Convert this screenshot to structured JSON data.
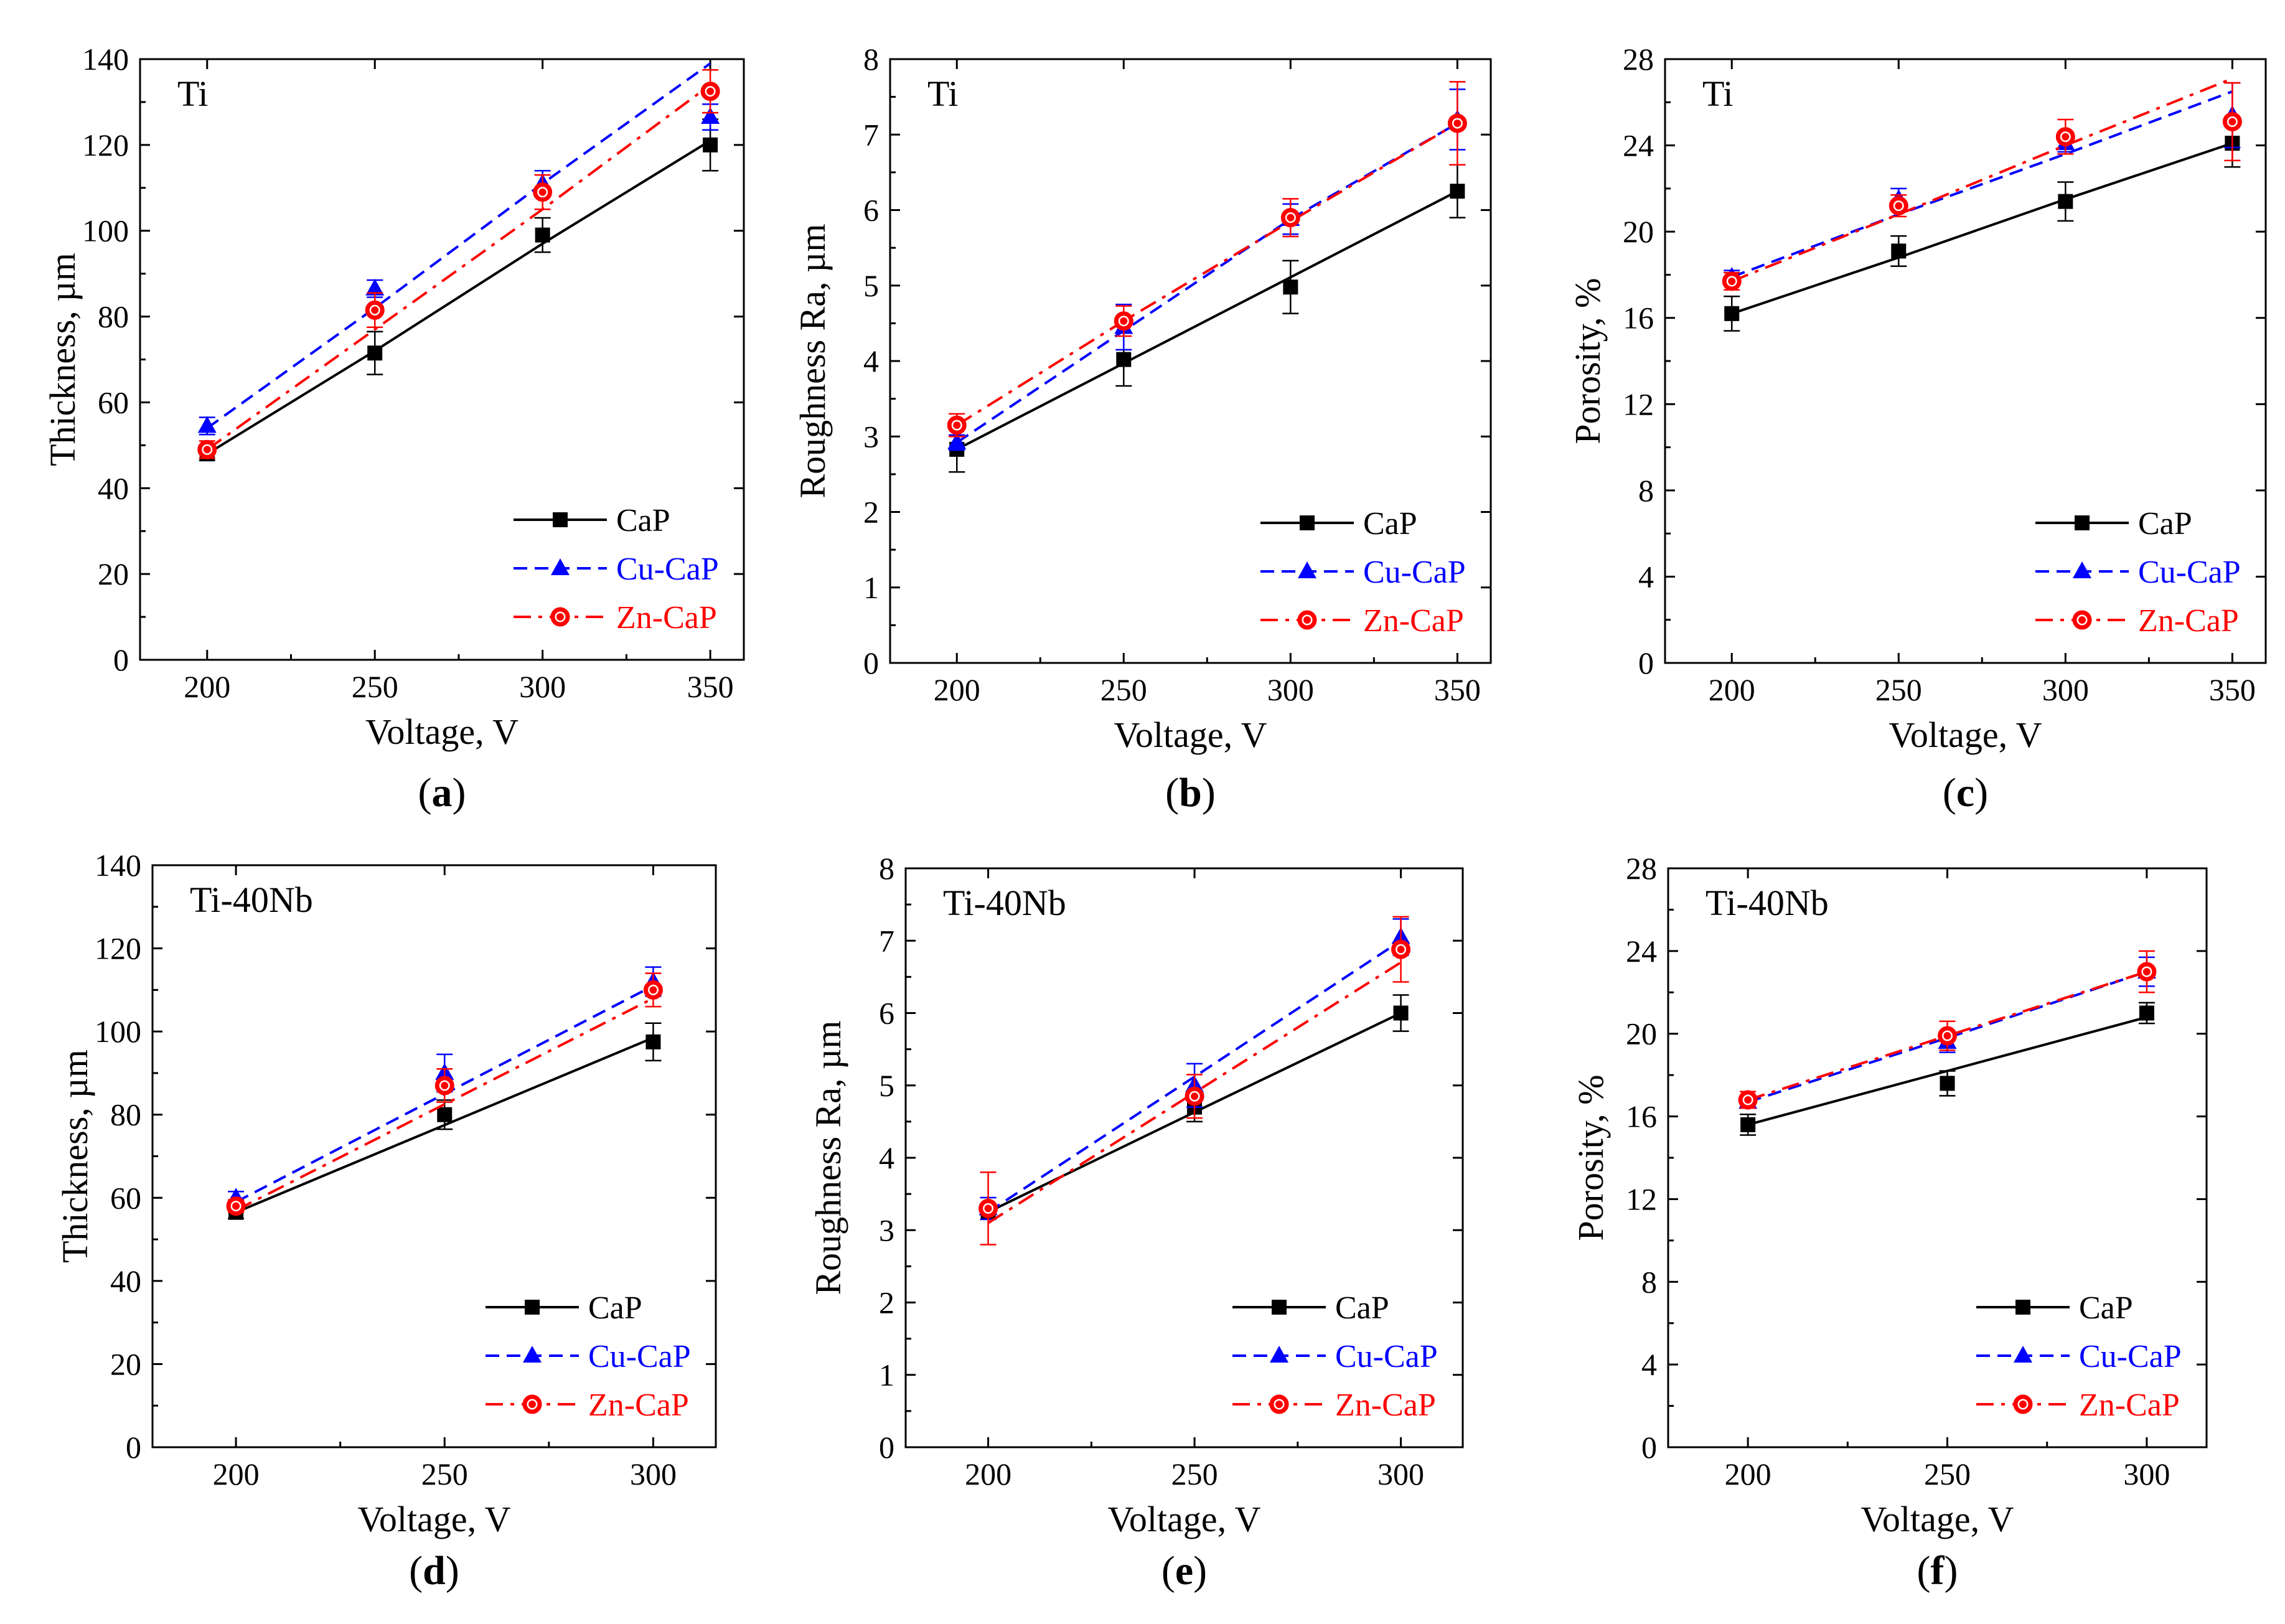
{
  "colors": {
    "CaP": "#000000",
    "Cu-CaP": "#0000ff",
    "Zn-CaP": "#ff0000"
  },
  "chart_data": [
    {
      "id": "a",
      "type": "line",
      "tag": "a",
      "title": "Ti",
      "xlabel": "Voltage, V",
      "ylabel": "Thickness, µm",
      "x": [
        200,
        250,
        300,
        350
      ],
      "xlim": [
        180,
        360
      ],
      "xticks": [
        200,
        250,
        300,
        350
      ],
      "ylim": [
        0,
        140
      ],
      "yticks": [
        0,
        20,
        40,
        60,
        80,
        100,
        120,
        140
      ],
      "legend_position": "bottom-right",
      "series": [
        {
          "name": "CaP",
          "marker": "square",
          "dash": "solid",
          "color": "#000000",
          "values": [
            48,
            71.5,
            99,
            120
          ],
          "errors": [
            1.5,
            5,
            4,
            6
          ],
          "fit": [
            48,
            72,
            97,
            121
          ]
        },
        {
          "name": "Cu-CaP",
          "marker": "triangle",
          "dash": "dashed",
          "color": "#0000ff",
          "values": [
            54.5,
            86.5,
            111,
            126.5
          ],
          "errors": [
            2,
            2,
            3,
            3
          ],
          "fit": [
            54,
            82,
            111,
            139
          ]
        },
        {
          "name": "Zn-CaP",
          "marker": "circle",
          "dash": "dashdot",
          "color": "#ff0000",
          "values": [
            49,
            81.5,
            109,
            132.5
          ],
          "errors": [
            2,
            4,
            4,
            5
          ],
          "fit": [
            49,
            77,
            105,
            134
          ]
        }
      ]
    },
    {
      "id": "b",
      "type": "line",
      "tag": "b",
      "title": "Ti",
      "xlabel": "Voltage, V",
      "ylabel": "Roughness Ra, µm",
      "x": [
        200,
        250,
        300,
        350
      ],
      "xlim": [
        180,
        360
      ],
      "xticks": [
        200,
        250,
        300,
        350
      ],
      "ylim": [
        0,
        8
      ],
      "yticks": [
        0,
        1,
        2,
        3,
        4,
        5,
        6,
        7,
        8
      ],
      "legend_position": "bottom-right",
      "series": [
        {
          "name": "CaP",
          "marker": "square",
          "dash": "solid",
          "color": "#000000",
          "values": [
            2.83,
            4.02,
            4.98,
            6.25
          ],
          "errors": [
            0.3,
            0.35,
            0.35,
            0.35
          ],
          "fit": [
            2.83,
            3.97,
            5.11,
            6.25
          ]
        },
        {
          "name": "Cu-CaP",
          "marker": "triangle",
          "dash": "dashed",
          "color": "#0000ff",
          "values": [
            2.92,
            4.45,
            5.88,
            7.2
          ],
          "errors": [
            0.1,
            0.3,
            0.2,
            0.4
          ],
          "fit": [
            2.92,
            4.4,
            5.88,
            7.15
          ]
        },
        {
          "name": "Zn-CaP",
          "marker": "circle",
          "dash": "dashdot",
          "color": "#ff0000",
          "values": [
            3.15,
            4.53,
            5.9,
            7.15
          ],
          "errors": [
            0.15,
            0.2,
            0.25,
            0.55
          ],
          "fit": [
            3.15,
            4.53,
            5.85,
            7.15
          ]
        }
      ]
    },
    {
      "id": "c",
      "type": "line",
      "tag": "c",
      "title": "Ti",
      "xlabel": "Voltage, V",
      "ylabel": "Porosity, %",
      "x": [
        200,
        250,
        300,
        350
      ],
      "xlim": [
        180,
        360
      ],
      "xticks": [
        200,
        250,
        300,
        350
      ],
      "ylim": [
        0,
        28
      ],
      "yticks": [
        0,
        4,
        8,
        12,
        16,
        20,
        24,
        28
      ],
      "legend_position": "bottom-right",
      "series": [
        {
          "name": "CaP",
          "marker": "square",
          "dash": "solid",
          "color": "#000000",
          "values": [
            16.2,
            19.1,
            21.4,
            24.1
          ],
          "errors": [
            0.8,
            0.7,
            0.9,
            1.1
          ],
          "fit": [
            16.2,
            18.8,
            21.5,
            24.1
          ]
        },
        {
          "name": "Cu-CaP",
          "marker": "triangle",
          "dash": "dashed",
          "color": "#0000ff",
          "values": [
            17.9,
            21.5,
            24.1,
            25.4
          ],
          "errors": [
            0.3,
            0.5,
            0.4,
            1.5
          ],
          "fit": [
            17.9,
            20.8,
            23.6,
            26.5
          ]
        },
        {
          "name": "Zn-CaP",
          "marker": "circle",
          "dash": "dashdot",
          "color": "#ff0000",
          "values": [
            17.7,
            21.2,
            24.4,
            25.1
          ],
          "errors": [
            0.4,
            0.5,
            0.8,
            1.8
          ],
          "fit": [
            17.7,
            20.8,
            24.0,
            27.1
          ]
        }
      ]
    },
    {
      "id": "d",
      "type": "line",
      "tag": "d",
      "title": "Ti-40Nb",
      "xlabel": "Voltage, V",
      "ylabel": "Thickness, µm",
      "x": [
        200,
        250,
        300
      ],
      "xlim": [
        180,
        315
      ],
      "xticks": [
        200,
        250,
        300
      ],
      "ylim": [
        0,
        140
      ],
      "yticks": [
        0,
        20,
        40,
        60,
        80,
        100,
        120,
        140
      ],
      "legend_position": "bottom-right",
      "series": [
        {
          "name": "CaP",
          "marker": "square",
          "dash": "solid",
          "color": "#000000",
          "values": [
            56.5,
            80,
            97.5
          ],
          "errors": [
            1.5,
            3.5,
            4.5
          ],
          "fit": [
            56.5,
            77.5,
            98.5
          ]
        },
        {
          "name": "Cu-CaP",
          "marker": "triangle",
          "dash": "dashed",
          "color": "#0000ff",
          "values": [
            60,
            90,
            112
          ],
          "errors": [
            1.5,
            4.5,
            3.5
          ],
          "fit": [
            59,
            85,
            111
          ]
        },
        {
          "name": "Zn-CaP",
          "marker": "circle",
          "dash": "dashdot",
          "color": "#ff0000",
          "values": [
            58,
            87,
            110
          ],
          "errors": [
            1.5,
            4,
            4
          ],
          "fit": [
            57,
            82.5,
            108
          ]
        }
      ]
    },
    {
      "id": "e",
      "type": "line",
      "tag": "e",
      "title": "Ti-40Nb",
      "xlabel": "Voltage, V",
      "ylabel": "Roughness Ra, µm",
      "x": [
        200,
        250,
        300
      ],
      "xlim": [
        180,
        315
      ],
      "xticks": [
        200,
        250,
        300
      ],
      "ylim": [
        0,
        8
      ],
      "yticks": [
        0,
        1,
        2,
        3,
        4,
        5,
        6,
        7,
        8
      ],
      "legend_position": "bottom-right",
      "series": [
        {
          "name": "CaP",
          "marker": "square",
          "dash": "solid",
          "color": "#000000",
          "values": [
            3.25,
            4.7,
            6.0
          ],
          "errors": [
            0.1,
            0.2,
            0.25
          ],
          "fit": [
            3.25,
            4.63,
            6.0
          ]
        },
        {
          "name": "Cu-CaP",
          "marker": "triangle",
          "dash": "dashed",
          "color": "#0000ff",
          "values": [
            3.3,
            5.0,
            7.05
          ],
          "errors": [
            0.15,
            0.3,
            0.25
          ],
          "fit": [
            3.25,
            5.12,
            7.0
          ]
        },
        {
          "name": "Zn-CaP",
          "marker": "circle",
          "dash": "dashdot",
          "color": "#ff0000",
          "values": [
            3.3,
            4.85,
            6.88
          ],
          "errors": [
            0.5,
            0.3,
            0.45
          ],
          "fit": [
            3.1,
            4.9,
            6.7
          ]
        }
      ]
    },
    {
      "id": "f",
      "type": "line",
      "tag": "f",
      "title": "Ti-40Nb",
      "xlabel": "Voltage, V",
      "ylabel": "Porosity, %",
      "x": [
        200,
        250,
        300
      ],
      "xlim": [
        180,
        315
      ],
      "xticks": [
        200,
        250,
        300
      ],
      "ylim": [
        0,
        28
      ],
      "yticks": [
        0,
        4,
        8,
        12,
        16,
        20,
        24,
        28
      ],
      "legend_position": "bottom-right",
      "series": [
        {
          "name": "CaP",
          "marker": "square",
          "dash": "solid",
          "color": "#000000",
          "values": [
            15.6,
            17.6,
            21.0
          ],
          "errors": [
            0.5,
            0.6,
            0.5
          ],
          "fit": [
            15.6,
            18.2,
            20.8
          ]
        },
        {
          "name": "Cu-CaP",
          "marker": "triangle",
          "dash": "dashed",
          "color": "#0000ff",
          "values": [
            16.7,
            19.6,
            23.0
          ],
          "errors": [
            0.3,
            0.5,
            0.7
          ],
          "fit": [
            16.7,
            19.8,
            23.0
          ]
        },
        {
          "name": "Zn-CaP",
          "marker": "circle",
          "dash": "dashdot",
          "color": "#ff0000",
          "values": [
            16.8,
            19.9,
            23.0
          ],
          "errors": [
            0.4,
            0.7,
            1.0
          ],
          "fit": [
            16.8,
            19.9,
            23.0
          ]
        }
      ]
    }
  ]
}
